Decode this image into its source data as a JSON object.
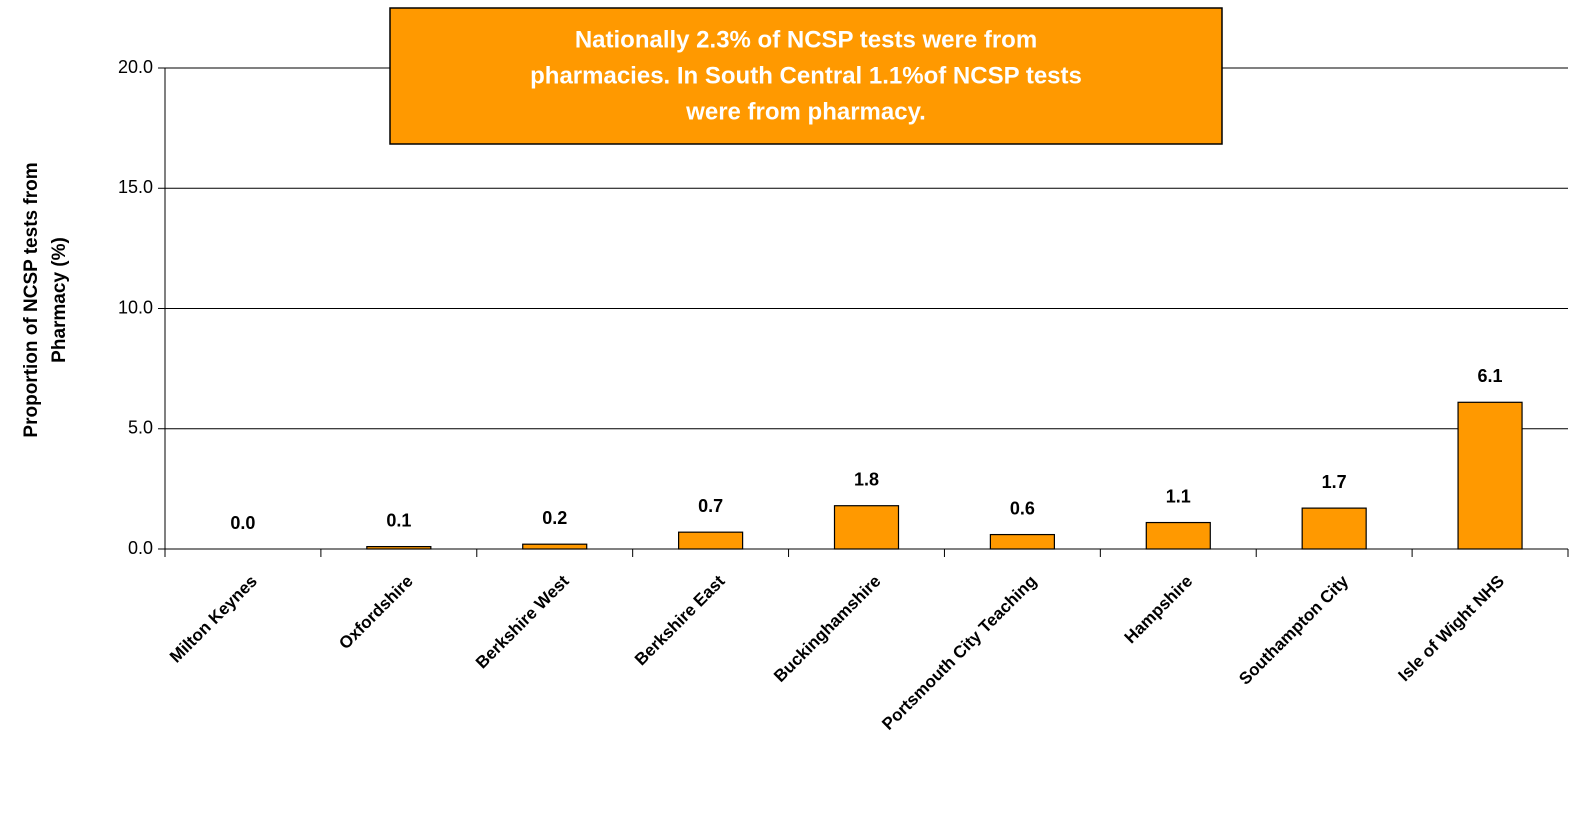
{
  "chart_data": {
    "type": "bar",
    "y_label": [
      "Proportion of NCSP tests from",
      "Pharmacy (%)"
    ],
    "annotation": [
      "Nationally  2.3% of NCSP tests were from",
      "pharmacies. In South Central 1.1%of NCSP tests",
      "were from pharmacy."
    ],
    "categories": [
      "Milton Keynes",
      "Oxfordshire",
      "Berkshire West",
      "Berkshire East",
      "Buckinghamshire",
      "Portsmouth City Teaching",
      "Hampshire",
      "Southampton City",
      "Isle of Wight NHS"
    ],
    "values": [
      0.0,
      0.1,
      0.2,
      0.7,
      1.8,
      0.6,
      1.1,
      1.7,
      6.1
    ],
    "value_labels": [
      "0.0",
      "0.1",
      "0.2",
      "0.7",
      "1.8",
      "0.6",
      "1.1",
      "1.7",
      "6.1"
    ],
    "color": "#ff9900",
    "ylim": [
      0,
      20
    ],
    "yticks": [
      {
        "value": 0,
        "label": "0.0"
      },
      {
        "value": 5,
        "label": "5.0"
      },
      {
        "value": 10,
        "label": "10.0"
      },
      {
        "value": 15,
        "label": "15.0"
      },
      {
        "value": 20,
        "label": "20.0"
      }
    ],
    "grid": true
  }
}
